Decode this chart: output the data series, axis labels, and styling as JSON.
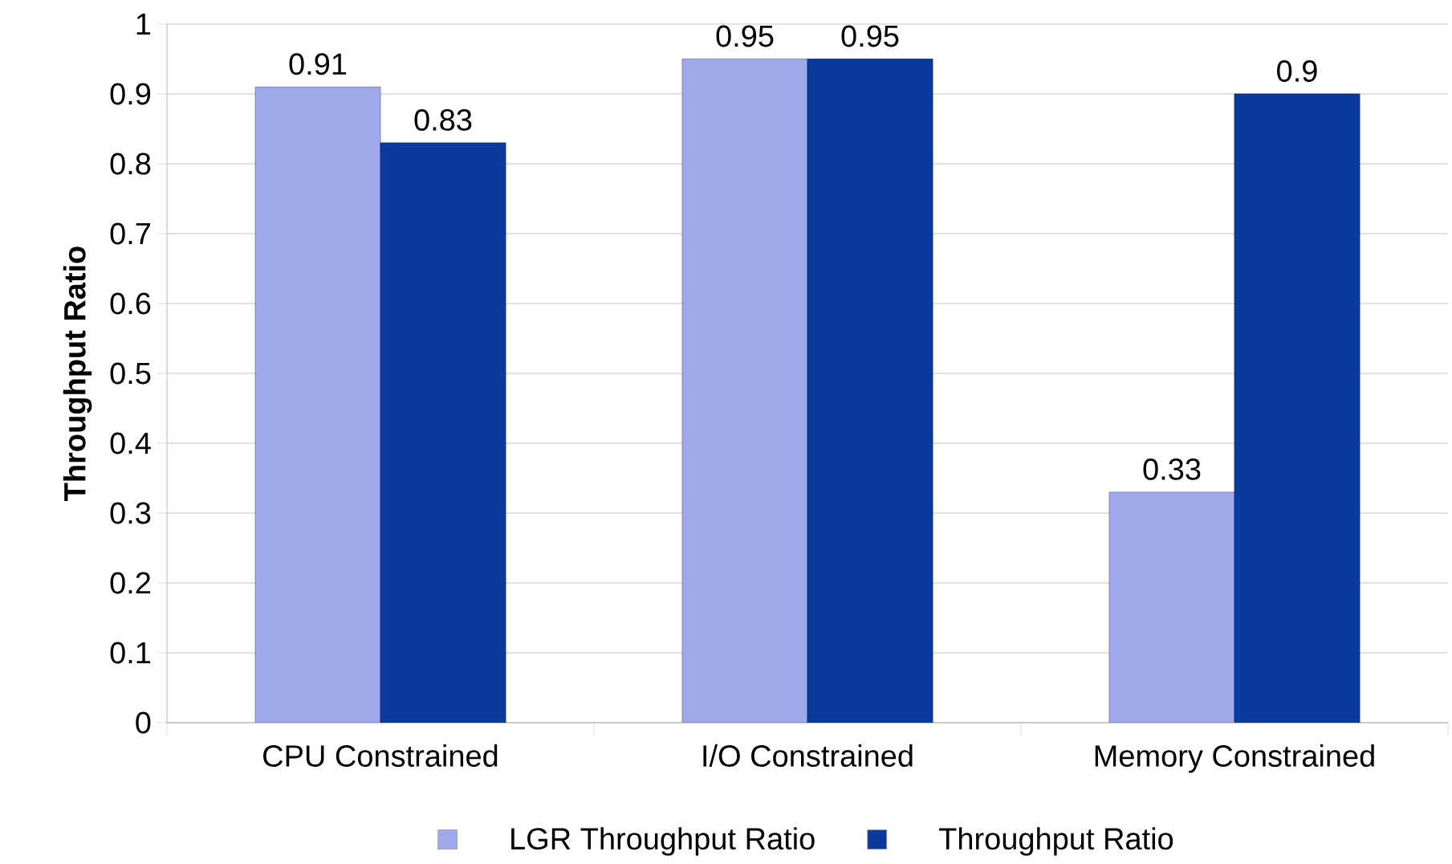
{
  "chart_data": {
    "type": "bar",
    "ylabel": "Throughput Ratio",
    "categories": [
      "CPU Constrained",
      "I/O Constrained",
      "Memory Constrained"
    ],
    "series": [
      {
        "name": "LGR Throughput Ratio",
        "color": "#a0a8ec",
        "values": [
          0.91,
          0.95,
          0.33
        ]
      },
      {
        "name": "Throughput Ratio",
        "color": "#0a3a9e",
        "values": [
          0.83,
          0.95,
          0.9
        ]
      }
    ],
    "ylim": [
      0,
      1
    ],
    "yticks": [
      0,
      0.1,
      0.2,
      0.3,
      0.4,
      0.5,
      0.6,
      0.7,
      0.8,
      0.9,
      1
    ],
    "grid": "y",
    "legend": "bottom",
    "data_labels": true
  }
}
